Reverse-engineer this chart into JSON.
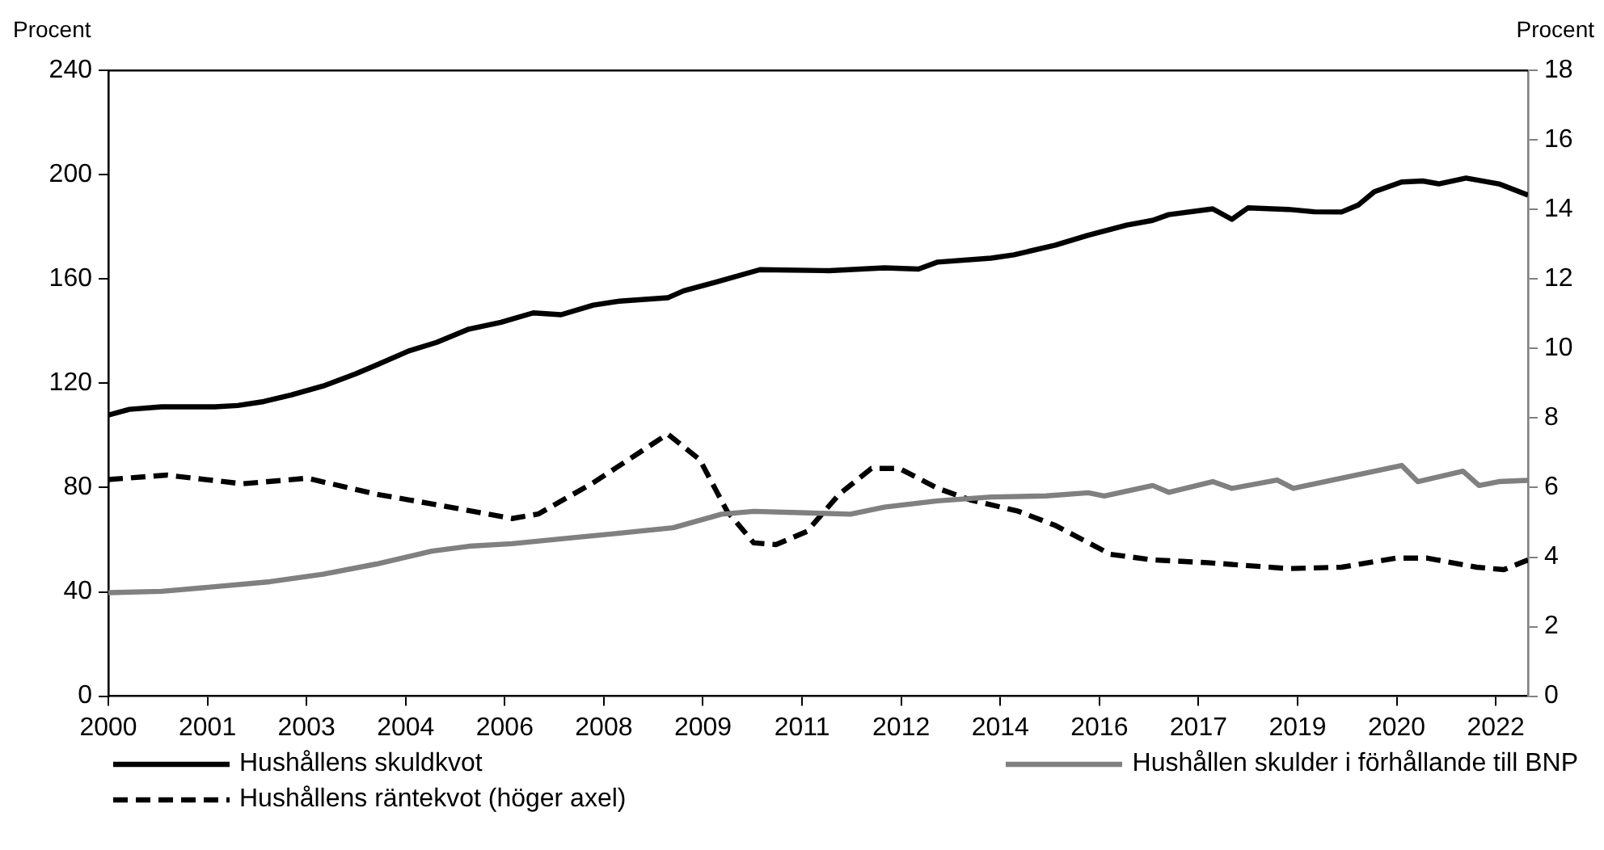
{
  "chart_data": {
    "type": "line",
    "ylabel": "Procent",
    "y2label": "Procent",
    "xlim": [
      1999.6,
      2022.52
    ],
    "xticks": [
      {
        "value": 1999.6,
        "label": "2000"
      },
      {
        "value": 2001.2,
        "label": "2001"
      },
      {
        "value": 2002.8,
        "label": "2003"
      },
      {
        "value": 2004.4,
        "label": "2004"
      },
      {
        "value": 2006,
        "label": "2006"
      },
      {
        "value": 2007.6,
        "label": "2008"
      },
      {
        "value": 2009.2,
        "label": "2009"
      },
      {
        "value": 2010.8,
        "label": "2011"
      },
      {
        "value": 2012.4,
        "label": "2012"
      },
      {
        "value": 2014,
        "label": "2014"
      },
      {
        "value": 2015.6,
        "label": "2016"
      },
      {
        "value": 2017.2,
        "label": "2017"
      },
      {
        "value": 2018.8,
        "label": "2019"
      },
      {
        "value": 2020.4,
        "label": "2020"
      },
      {
        "value": 2022,
        "label": "2022"
      }
    ],
    "ylim": [
      0,
      240
    ],
    "yticks": [
      0,
      40,
      80,
      120,
      160,
      200,
      240
    ],
    "y2lim": [
      0,
      18
    ],
    "y2ticks": [
      0,
      2,
      4,
      6,
      8,
      10,
      12,
      14,
      16,
      18
    ],
    "legend": "bottom",
    "marker": "none",
    "series": [
      {
        "name": "Hushållens skuldkvot",
        "color": "#000000",
        "line_style": "solid",
        "x": [
          1999.6,
          1999.94,
          2000.46,
          2001.32,
          2001.69,
          2002.11,
          2002.55,
          2003.07,
          2003.59,
          2003.93,
          2004.45,
          2004.9,
          2005.42,
          2005.94,
          2006.46,
          2006.91,
          2007.43,
          2007.85,
          2008.63,
          2008.89,
          2009.41,
          2010.12,
          2011.24,
          2012.13,
          2012.68,
          2012.99,
          2013.85,
          2014.22,
          2014.89,
          2015.42,
          2016.04,
          2016.46,
          2016.72,
          2017.43,
          2017.74,
          2018,
          2018.65,
          2019.07,
          2019.51,
          2019.78,
          2020.04,
          2020.48,
          2020.82,
          2021.08,
          2021.52,
          2022.05,
          2022.52
        ],
        "values": [
          107.8,
          110,
          111,
          111,
          111.5,
          113,
          115.5,
          119,
          123.6,
          127,
          132.4,
          135.7,
          140.8,
          143.4,
          147,
          146.3,
          150,
          151.5,
          152.8,
          155.5,
          158.8,
          163.6,
          163.2,
          164.3,
          163.8,
          166.5,
          168,
          169.3,
          173,
          176.8,
          180.7,
          182.5,
          184.7,
          186.9,
          182.9,
          187.3,
          186.7,
          185.8,
          185.7,
          188.4,
          193.5,
          197.2,
          197.6,
          196.5,
          198.7,
          196.5,
          192.2
        ]
      },
      {
        "name": "Hushållen skulder i förhållande till BNP",
        "color": "#808080",
        "line_style": "solid",
        "x": [
          1999.6,
          2000.46,
          2001.32,
          2002.21,
          2003.07,
          2003.93,
          2004.82,
          2005.42,
          2006.12,
          2006.98,
          2007.85,
          2008.72,
          2009.5,
          2010.02,
          2010.88,
          2011.58,
          2012.13,
          2012.99,
          2013.85,
          2014.74,
          2015.42,
          2015.68,
          2016.46,
          2016.72,
          2017.43,
          2017.74,
          2018.47,
          2018.73,
          2020.48,
          2020.74,
          2021.47,
          2021.73,
          2022.05,
          2022.52
        ],
        "values": [
          39.7,
          40.2,
          42,
          43.9,
          46.8,
          50.7,
          55.6,
          57.5,
          58.5,
          60.5,
          62.5,
          64.6,
          69.8,
          70.9,
          70.3,
          69.8,
          72.5,
          74.9,
          76.4,
          76.8,
          78,
          76.8,
          80.8,
          78.2,
          82.3,
          79.7,
          82.9,
          79.7,
          88.5,
          82.3,
          86.3,
          80.8,
          82.3,
          82.8
        ]
      },
      {
        "name": "Hushållens räntekvot (höger axel)",
        "color": "#000000",
        "line_style": "dashed",
        "axis": "y2",
        "x": [
          1999.6,
          2000.54,
          2001.77,
          2002.81,
          2003.93,
          2005.24,
          2006.12,
          2006.54,
          2007.43,
          2008.63,
          2009.15,
          2009.59,
          2010.02,
          2010.38,
          2010.88,
          2011.4,
          2011.92,
          2012.37,
          2012.99,
          2013.51,
          2014.29,
          2014.89,
          2015.78,
          2016.46,
          2017.35,
          2018.65,
          2019.51,
          2020.38,
          2020.9,
          2021.69,
          2022.13,
          2022.52
        ],
        "values": [
          6.23,
          6.36,
          6.11,
          6.27,
          5.81,
          5.4,
          5.11,
          5.24,
          6.14,
          7.54,
          6.8,
          5.32,
          4.41,
          4.36,
          4.74,
          5.81,
          6.55,
          6.55,
          5.98,
          5.65,
          5.32,
          4.91,
          4.08,
          3.92,
          3.84,
          3.67,
          3.71,
          3.97,
          3.97,
          3.71,
          3.64,
          3.92
        ]
      }
    ]
  }
}
